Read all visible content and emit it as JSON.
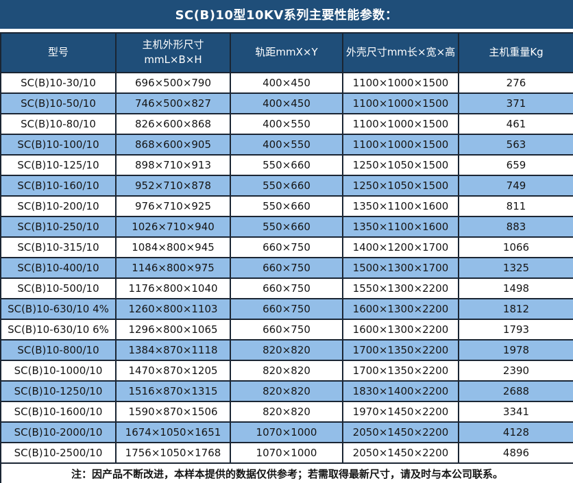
{
  "title": "SC(B)10型10KV系列主要性能参数：",
  "colors": {
    "title_bg": "#1F4E79",
    "header_bg": "#1F4E79",
    "title_text": "#FFFFFF",
    "header_text": "#FFFFFF",
    "row_white": "#FFFFFF",
    "row_blue": "#93BEE8",
    "grid_border": "#1A2533",
    "body_text": "#141414"
  },
  "table": {
    "columns": [
      {
        "label": "型号"
      },
      {
        "label": "主机外形尺寸",
        "sublabel": "mmL×B×H"
      },
      {
        "label": "轨距mmX×Y"
      },
      {
        "label": "外壳尺寸mm长×宽×高"
      },
      {
        "label": "主机重量Kg"
      }
    ],
    "rows": [
      [
        "SC(B)10-30/10",
        "696×500×790",
        "400×450",
        "1100×1000×1500",
        "276"
      ],
      [
        "SC(B)10-50/10",
        "746×500×827",
        "400×450",
        "1100×1000×1500",
        "371"
      ],
      [
        "SC(B)10-80/10",
        "826×600×868",
        "400×550",
        "1100×1000×1500",
        "461"
      ],
      [
        "SC(B)10-100/10",
        "868×600×905",
        "400×550",
        "1100×1000×1500",
        "563"
      ],
      [
        "SC(B)10-125/10",
        "898×710×913",
        "550×660",
        "1250×1050×1500",
        "659"
      ],
      [
        "SC(B)10-160/10",
        "952×710×878",
        "550×660",
        "1250×1050×1500",
        "749"
      ],
      [
        "SC(B)10-200/10",
        "976×710×925",
        "550×660",
        "1350×1100×1600",
        "811"
      ],
      [
        "SC(B)10-250/10",
        "1026×710×940",
        "550×660",
        "1350×1100×1600",
        "883"
      ],
      [
        "SC(B)10-315/10",
        "1084×800×945",
        "660×750",
        "1400×1200×1700",
        "1066"
      ],
      [
        "SC(B)10-400/10",
        "1146×800×975",
        "660×750",
        "1500×1300×1700",
        "1325"
      ],
      [
        "SC(B)10-500/10",
        "1176×800×1040",
        "660×750",
        "1550×1300×2200",
        "1498"
      ],
      [
        "SC(B)10-630/10 4%",
        "1260×800×1103",
        "660×750",
        "1600×1300×2200",
        "1812"
      ],
      [
        "SC(B)10-630/10 6%",
        "1296×800×1065",
        "660×750",
        "1600×1300×2200",
        "1793"
      ],
      [
        "SC(B)10-800/10",
        "1384×870×1118",
        "820×820",
        "1700×1350×2200",
        "1978"
      ],
      [
        "SC(B)10-1000/10",
        "1470×870×1205",
        "820×820",
        "1700×1350×2200",
        "2390"
      ],
      [
        "SC(B)10-1250/10",
        "1516×870×1315",
        "820×820",
        "1830×1400×2200",
        "2688"
      ],
      [
        "SC(B)10-1600/10",
        "1590×870×1506",
        "820×820",
        "1970×1450×2200",
        "3341"
      ],
      [
        "SC(B)10-2000/10",
        "1674×1050×1651",
        "1070×1000",
        "2050×1450×2200",
        "4128"
      ],
      [
        "SC(B)10-2500/10",
        "1756×1050×1768",
        "1070×1000",
        "2050×1450×2200",
        "4896"
      ]
    ],
    "cell_names": [
      "cell-model",
      "cell-host-size",
      "cell-rail-gauge",
      "cell-shell-size",
      "cell-weight"
    ]
  },
  "note": "注：因产品不断改进，本样本提供的数据仅供参考；若需取得最新尺寸，请及时与本公司联系。"
}
